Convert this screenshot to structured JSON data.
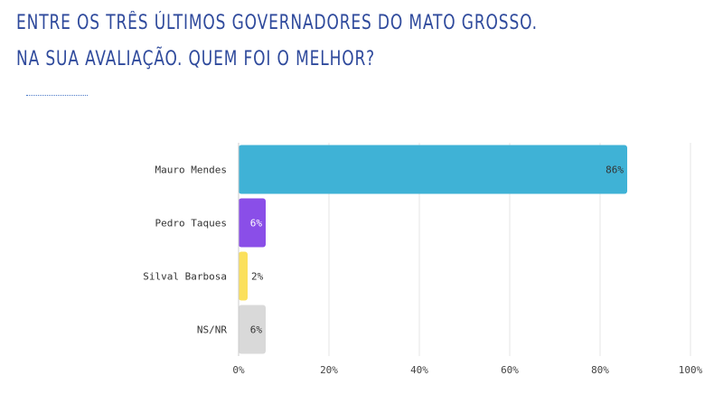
{
  "title": "ENTRE OS TRÊS ÚLTIMOS GOVERNADORES DO MATO GROSSO. NA SUA AVALIAÇÃO. QUEM FOI O MELHOR?",
  "chart_data": {
    "type": "bar",
    "orientation": "horizontal",
    "categories": [
      "Mauro Mendes",
      "Pedro Taques",
      "Silval Barbosa",
      "NS/NR"
    ],
    "values": [
      86,
      6,
      2,
      6
    ],
    "value_labels": [
      "86%",
      "6%",
      "2%",
      "6%"
    ],
    "colors": [
      "#3fb2d6",
      "#8a4ee8",
      "#fbe05c",
      "#d9d9d9"
    ],
    "label_colors": [
      "#333333",
      "#ffffff",
      "#333333",
      "#333333"
    ],
    "xlim": [
      0,
      100
    ],
    "xticks": [
      0,
      20,
      40,
      60,
      80,
      100
    ],
    "xtick_labels": [
      "0%",
      "20%",
      "40%",
      "60%",
      "80%",
      "100%"
    ],
    "grid": true
  }
}
